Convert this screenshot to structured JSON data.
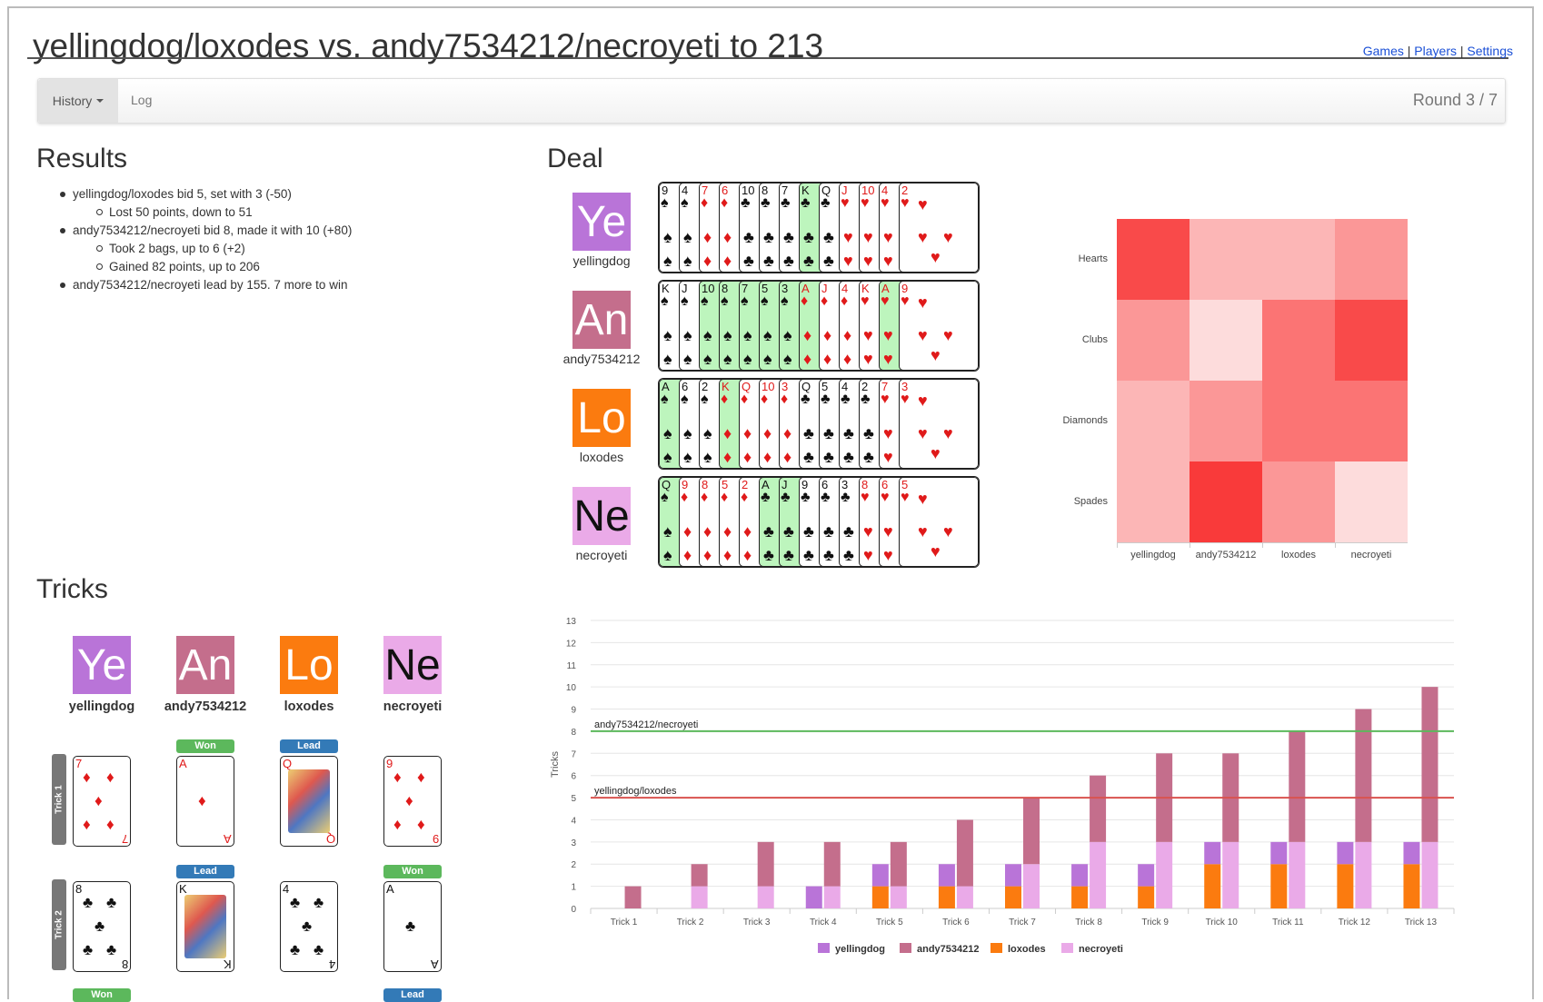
{
  "header": {
    "title": "yellingdog/loxodes vs. andy7534212/necroyeti to 213",
    "links": [
      "Games",
      "Players",
      "Settings"
    ],
    "separator": "|"
  },
  "nav": {
    "history_label": "History",
    "log_label": "Log",
    "round_label": "Round 3 / 7"
  },
  "results": {
    "heading": "Results",
    "lines": [
      {
        "text": "yellingdog/loxodes bid 5, set with 3 (-50)",
        "sub": false
      },
      {
        "text": "Lost 50 points, down to 51",
        "sub": true
      },
      {
        "text": "andy7534212/necroyeti bid 8, made it with 10 (+80)",
        "sub": false
      },
      {
        "text": "Took 2 bags, up to 6 (+2)",
        "sub": true
      },
      {
        "text": "Gained 82 points, up to 206",
        "sub": true
      },
      {
        "text": "andy7534212/necroyeti lead by 155. 7 more to win",
        "sub": false
      }
    ]
  },
  "deal": {
    "heading": "Deal",
    "players": [
      {
        "initials": "Ye",
        "name": "yellingdog",
        "color": "#b974d8",
        "cards": [
          {
            "r": "9",
            "s": "♠",
            "hl": false
          },
          {
            "r": "4",
            "s": "♠",
            "hl": false
          },
          {
            "r": "7",
            "s": "♦",
            "hl": false
          },
          {
            "r": "6",
            "s": "♦",
            "hl": false
          },
          {
            "r": "10",
            "s": "♣",
            "hl": false
          },
          {
            "r": "8",
            "s": "♣",
            "hl": false
          },
          {
            "r": "7",
            "s": "♣",
            "hl": false
          },
          {
            "r": "K",
            "s": "♣",
            "hl": true
          },
          {
            "r": "Q",
            "s": "♣",
            "hl": false
          },
          {
            "r": "J",
            "s": "♥",
            "hl": false
          },
          {
            "r": "10",
            "s": "♥",
            "hl": false
          },
          {
            "r": "4",
            "s": "♥",
            "hl": false
          },
          {
            "r": "2",
            "s": "♥",
            "hl": false
          }
        ]
      },
      {
        "initials": "An",
        "name": "andy7534212",
        "color": "#c46e8c",
        "cards": [
          {
            "r": "K",
            "s": "♠",
            "hl": false
          },
          {
            "r": "J",
            "s": "♠",
            "hl": false
          },
          {
            "r": "10",
            "s": "♠",
            "hl": true
          },
          {
            "r": "8",
            "s": "♠",
            "hl": true
          },
          {
            "r": "7",
            "s": "♠",
            "hl": true
          },
          {
            "r": "5",
            "s": "♠",
            "hl": true
          },
          {
            "r": "3",
            "s": "♠",
            "hl": true
          },
          {
            "r": "A",
            "s": "♦",
            "hl": true
          },
          {
            "r": "J",
            "s": "♦",
            "hl": false
          },
          {
            "r": "4",
            "s": "♦",
            "hl": false
          },
          {
            "r": "K",
            "s": "♥",
            "hl": false
          },
          {
            "r": "A",
            "s": "♥",
            "hl": true
          },
          {
            "r": "9",
            "s": "♥",
            "hl": false
          }
        ]
      },
      {
        "initials": "Lo",
        "name": "loxodes",
        "color": "#fb7b0f",
        "cards": [
          {
            "r": "A",
            "s": "♠",
            "hl": true
          },
          {
            "r": "6",
            "s": "♠",
            "hl": false
          },
          {
            "r": "2",
            "s": "♠",
            "hl": false
          },
          {
            "r": "K",
            "s": "♦",
            "hl": true
          },
          {
            "r": "Q",
            "s": "♦",
            "hl": false
          },
          {
            "r": "10",
            "s": "♦",
            "hl": false
          },
          {
            "r": "3",
            "s": "♦",
            "hl": false
          },
          {
            "r": "Q",
            "s": "♣",
            "hl": false
          },
          {
            "r": "5",
            "s": "♣",
            "hl": false
          },
          {
            "r": "4",
            "s": "♣",
            "hl": false
          },
          {
            "r": "2",
            "s": "♣",
            "hl": false
          },
          {
            "r": "7",
            "s": "♥",
            "hl": false
          },
          {
            "r": "3",
            "s": "♥",
            "hl": false
          }
        ]
      },
      {
        "initials": "Ne",
        "name": "necroyeti",
        "color": "#eaaae8",
        "cards": [
          {
            "r": "Q",
            "s": "♠",
            "hl": true
          },
          {
            "r": "9",
            "s": "♦",
            "hl": false
          },
          {
            "r": "8",
            "s": "♦",
            "hl": false
          },
          {
            "r": "5",
            "s": "♦",
            "hl": false
          },
          {
            "r": "2",
            "s": "♦",
            "hl": false
          },
          {
            "r": "A",
            "s": "♣",
            "hl": true
          },
          {
            "r": "J",
            "s": "♣",
            "hl": true
          },
          {
            "r": "9",
            "s": "♣",
            "hl": false
          },
          {
            "r": "6",
            "s": "♣",
            "hl": false
          },
          {
            "r": "3",
            "s": "♣",
            "hl": false
          },
          {
            "r": "8",
            "s": "♥",
            "hl": false
          },
          {
            "r": "6",
            "s": "♥",
            "hl": false
          },
          {
            "r": "5",
            "s": "♥",
            "hl": false
          }
        ]
      }
    ]
  },
  "heatmap": {
    "rows": [
      "Hearts",
      "Clubs",
      "Diamonds",
      "Spades"
    ],
    "cols": [
      "yellingdog",
      "andy7534212",
      "loxodes",
      "necroyeti"
    ],
    "colors": [
      [
        "#f94a4a",
        "#fcb6b6",
        "#fcb6b6",
        "#fb9797"
      ],
      [
        "#fb9797",
        "#fddcdc",
        "#fb7474",
        "#f94a4a"
      ],
      [
        "#fcb6b6",
        "#fb9797",
        "#fb7474",
        "#fb7474"
      ],
      [
        "#fcb6b6",
        "#f93a3a",
        "#fb9797",
        "#fddcdc"
      ]
    ]
  },
  "tricks": {
    "heading": "Tricks",
    "players": [
      {
        "initials": "Ye",
        "name": "yellingdog",
        "color": "#b974d8"
      },
      {
        "initials": "An",
        "name": "andy7534212",
        "color": "#c46e8c"
      },
      {
        "initials": "Lo",
        "name": "loxodes",
        "color": "#fb7b0f"
      },
      {
        "initials": "Ne",
        "name": "necroyeti",
        "color": "#eaaae8"
      }
    ],
    "rows": [
      {
        "label": "Trick 1",
        "cards": [
          {
            "r": "7",
            "s": "♦",
            "badge": ""
          },
          {
            "r": "A",
            "s": "♦",
            "badge": "Won"
          },
          {
            "r": "Q",
            "s": "♦",
            "badge": "Lead"
          },
          {
            "r": "9",
            "s": "♦",
            "badge": ""
          }
        ]
      },
      {
        "label": "Trick 2",
        "cards": [
          {
            "r": "8",
            "s": "♣",
            "badge": ""
          },
          {
            "r": "K",
            "s": "♣",
            "badge": "Lead"
          },
          {
            "r": "4",
            "s": "♣",
            "badge": ""
          },
          {
            "r": "A",
            "s": "♣",
            "badge": "Won"
          }
        ]
      }
    ],
    "next_badges": [
      "Won",
      "Lead"
    ]
  },
  "chart_data": {
    "type": "bar",
    "categories": [
      "Trick 1",
      "Trick 2",
      "Trick 3",
      "Trick 4",
      "Trick 5",
      "Trick 6",
      "Trick 7",
      "Trick 8",
      "Trick 9",
      "Trick 10",
      "Trick 11",
      "Trick 12",
      "Trick 13"
    ],
    "ylabel": "Tricks",
    "ylim": [
      0,
      13
    ],
    "yticks": [
      0,
      1,
      2,
      3,
      4,
      5,
      6,
      7,
      8,
      9,
      10,
      11,
      12,
      13
    ],
    "stacks": [
      {
        "name": "yellingdog/loxodes",
        "series": [
          "yellingdog",
          "loxodes"
        ]
      },
      {
        "name": "andy7534212/necroyeti",
        "series": [
          "andy7534212",
          "necroyeti"
        ]
      }
    ],
    "series": [
      {
        "name": "yellingdog",
        "color": "#b974d8",
        "values": [
          0,
          0,
          0,
          1,
          1,
          1,
          1,
          1,
          1,
          1,
          1,
          1,
          1
        ]
      },
      {
        "name": "andy7534212",
        "color": "#c46e8c",
        "values": [
          1,
          1,
          2,
          2,
          2,
          3,
          3,
          3,
          4,
          4,
          5,
          6,
          7
        ]
      },
      {
        "name": "loxodes",
        "color": "#fb7b0f",
        "values": [
          0,
          0,
          0,
          0,
          1,
          1,
          1,
          1,
          1,
          2,
          2,
          2,
          2
        ]
      },
      {
        "name": "necroyeti",
        "color": "#eaaae8",
        "values": [
          0,
          1,
          1,
          1,
          1,
          1,
          2,
          3,
          3,
          3,
          3,
          3,
          3
        ]
      }
    ],
    "bid_lines": [
      {
        "label": "andy7534212/necroyeti",
        "value": 8,
        "color": "#5cb85c"
      },
      {
        "label": "yellingdog/loxodes",
        "value": 5,
        "color": "#d9534f"
      }
    ],
    "legend": [
      "yellingdog",
      "andy7534212",
      "loxodes",
      "necroyeti"
    ],
    "legend_placement": "bottom",
    "grid": true
  }
}
